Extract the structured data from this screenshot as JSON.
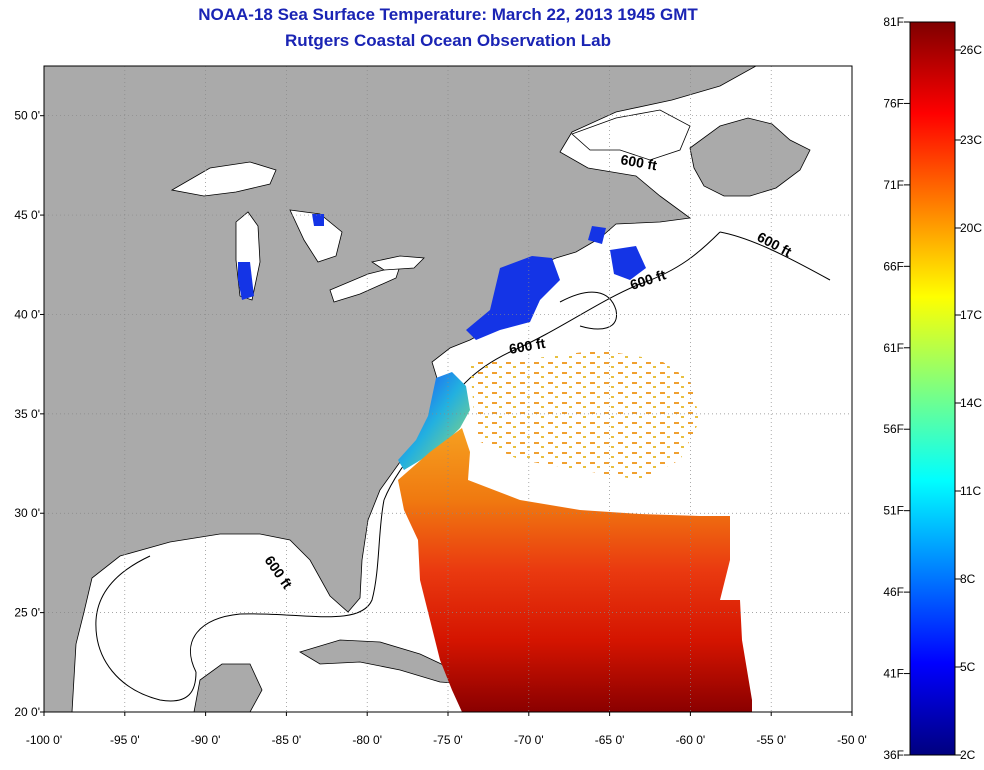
{
  "title": {
    "line1": "NOAA-18 Sea Surface Temperature:  March 22, 2013 1945 GMT",
    "line2": "Rutgers Coastal Ocean Observation Lab"
  },
  "map": {
    "lon_range": [
      -100,
      -50
    ],
    "lat_range": [
      20,
      52.5
    ],
    "lon_ticks": [
      {
        "value": -100,
        "label": "-100 0'"
      },
      {
        "value": -95,
        "label": "-95 0'"
      },
      {
        "value": -90,
        "label": "-90 0'"
      },
      {
        "value": -85,
        "label": "-85 0'"
      },
      {
        "value": -80,
        "label": "-80 0'"
      },
      {
        "value": -75,
        "label": "-75 0'"
      },
      {
        "value": -70,
        "label": "-70 0'"
      },
      {
        "value": -65,
        "label": "-65 0'"
      },
      {
        "value": -60,
        "label": "-60 0'"
      },
      {
        "value": -55,
        "label": "-55 0'"
      },
      {
        "value": -50,
        "label": "-50 0'"
      }
    ],
    "lat_ticks": [
      {
        "value": 50,
        "label": "50 0'"
      },
      {
        "value": 45,
        "label": "45 0'"
      },
      {
        "value": 40,
        "label": "40 0'"
      },
      {
        "value": 35,
        "label": "35 0'"
      },
      {
        "value": 30,
        "label": "30 0'"
      },
      {
        "value": 25,
        "label": "25 0'"
      },
      {
        "value": 20,
        "label": "20 0'"
      }
    ],
    "contour_label": "600 ft",
    "land_color": "#aaaaaa",
    "grid": true
  },
  "colorbar": {
    "colors": [
      "#00007f",
      "#0000ff",
      "#007fff",
      "#00ffff",
      "#7fff7f",
      "#ffff00",
      "#ff7f00",
      "#ff0000",
      "#7f0000"
    ],
    "f_labels": [
      "81F",
      "76F",
      "71F",
      "66F",
      "61F",
      "56F",
      "51F",
      "46F",
      "41F",
      "36F"
    ],
    "c_labels": [
      "26C",
      "23C",
      "20C",
      "17C",
      "14C",
      "11C",
      "8C",
      "5C",
      "2C"
    ]
  }
}
